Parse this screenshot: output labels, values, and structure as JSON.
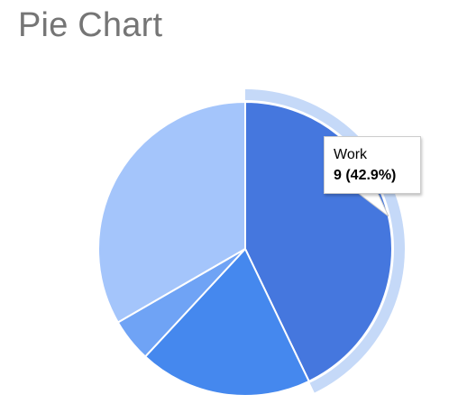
{
  "chart_data": {
    "type": "pie",
    "title": "Pie Chart",
    "slices": [
      {
        "name": "Work",
        "value": 9,
        "color": "#4577de"
      },
      {
        "name": "",
        "value": 4,
        "color": "#4588ee"
      },
      {
        "name": "",
        "value": 1,
        "color": "#6fa3f5"
      },
      {
        "name": "",
        "value": 7,
        "color": "#a4c5fb"
      }
    ],
    "total": 21,
    "highlighted_slice": "Work",
    "highlight_color": "#c5d9f8",
    "legend": "none",
    "tooltip": {
      "label": "Work",
      "value_text": "9 (42.9%)"
    }
  }
}
